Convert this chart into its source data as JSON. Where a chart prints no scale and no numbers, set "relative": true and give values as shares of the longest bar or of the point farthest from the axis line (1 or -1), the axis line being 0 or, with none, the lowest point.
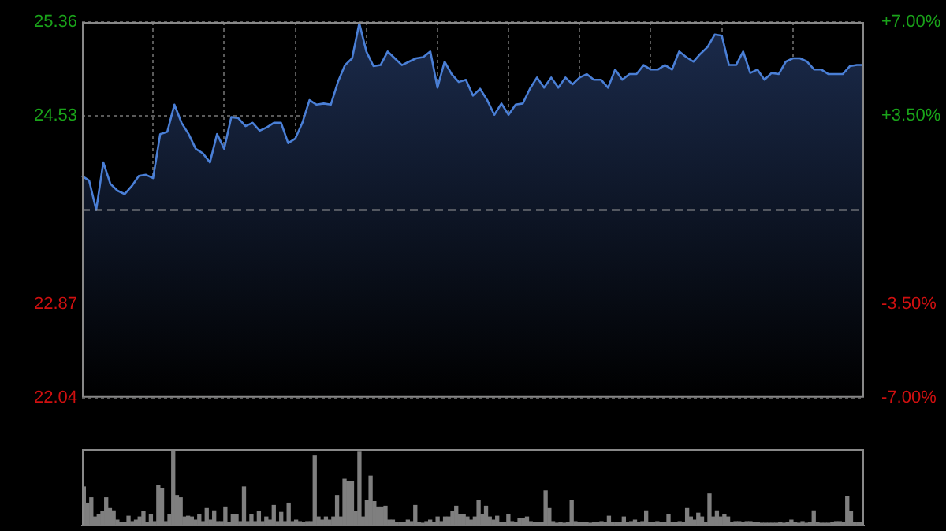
{
  "chart_data": [
    {
      "type": "area",
      "categories": [
        null,
        null,
        null,
        null,
        null,
        null,
        null,
        null,
        null,
        null,
        null,
        null,
        null,
        null,
        null,
        null,
        null,
        null,
        null,
        null,
        null,
        null,
        null,
        null,
        null,
        null,
        null,
        null,
        null,
        null,
        null,
        null,
        null,
        null,
        null,
        null,
        null,
        null,
        null,
        null,
        null,
        null,
        null,
        null,
        null,
        null,
        null,
        null,
        null,
        null,
        null,
        null,
        null,
        null,
        null,
        null,
        null,
        null,
        null,
        null,
        null,
        null,
        null,
        null,
        null,
        null,
        null,
        null,
        null,
        null,
        null,
        null,
        null,
        null,
        null,
        null,
        null,
        null,
        null,
        null,
        null,
        null,
        null,
        null,
        null,
        null,
        null,
        null,
        null,
        null,
        null,
        null,
        null,
        null,
        null,
        null,
        null,
        null,
        null,
        null,
        null,
        null,
        null,
        null,
        null,
        null,
        null,
        null,
        null,
        null,
        null
      ],
      "series": [
        {
          "color": "#4a7fd6",
          "values": [
            24.0,
            23.96,
            23.7,
            24.12,
            23.93,
            23.87,
            23.84,
            23.91,
            24.0,
            24.01,
            23.98,
            24.37,
            24.39,
            24.63,
            24.47,
            24.37,
            24.24,
            24.2,
            24.12,
            24.37,
            24.24,
            24.52,
            24.51,
            24.44,
            24.47,
            24.4,
            24.43,
            24.47,
            24.47,
            24.29,
            24.33,
            24.47,
            24.67,
            24.63,
            24.64,
            24.63,
            24.83,
            24.98,
            25.04,
            25.35,
            25.1,
            24.97,
            24.98,
            25.1,
            25.04,
            24.98,
            25.01,
            25.04,
            25.05,
            25.1,
            24.78,
            25.01,
            24.9,
            24.83,
            24.85,
            24.71,
            24.77,
            24.67,
            24.54,
            24.64,
            24.54,
            24.63,
            24.64,
            24.77,
            24.87,
            24.78,
            24.87,
            24.78,
            24.87,
            24.81,
            24.87,
            24.9,
            24.85,
            24.85,
            24.78,
            24.94,
            24.85,
            24.9,
            24.9,
            24.98,
            24.94,
            24.94,
            24.98,
            24.94,
            25.1,
            25.05,
            25.01,
            25.08,
            25.14,
            25.25,
            25.24,
            24.98,
            24.98,
            25.1,
            24.91,
            24.94,
            24.85,
            24.91,
            24.9,
            25.01,
            25.04,
            25.04,
            25.01,
            24.94,
            24.94,
            24.9,
            24.9,
            24.9,
            24.97,
            24.98,
            24.98
          ]
        }
      ],
      "ylim": [
        22.04,
        25.36
      ],
      "yticks": [
        22.04,
        22.87,
        24.53,
        25.36
      ],
      "y2lim": [
        -7,
        7
      ],
      "y2ticks": [
        {
          "value": -7,
          "label": "-7.00%"
        },
        {
          "value": -3.5,
          "label": "-3.50%"
        },
        {
          "value": 3.5,
          "label": "+3.50%"
        },
        {
          "value": 7,
          "label": "+7.00%"
        }
      ],
      "ref_lines": [
        {
          "axis": "y",
          "value": 23.7,
          "line_style": "dashed"
        }
      ],
      "grid": true,
      "tick_labels": "y",
      "legend": false
    },
    {
      "type": "bar",
      "relative": true,
      "color": "#7f7f7f",
      "categories": [
        null,
        null,
        null,
        null,
        null,
        null,
        null,
        null,
        null,
        null,
        null,
        null,
        null,
        null,
        null,
        null,
        null,
        null,
        null,
        null,
        null,
        null,
        null,
        null,
        null,
        null,
        null,
        null,
        null,
        null,
        null,
        null,
        null,
        null,
        null,
        null,
        null,
        null,
        null,
        null,
        null,
        null,
        null,
        null,
        null,
        null,
        null,
        null,
        null,
        null,
        null,
        null,
        null,
        null,
        null,
        null,
        null,
        null,
        null,
        null,
        null,
        null,
        null,
        null,
        null,
        null,
        null,
        null,
        null,
        null,
        null,
        null,
        null,
        null,
        null,
        null,
        null,
        null,
        null,
        null,
        null,
        null,
        null,
        null,
        null,
        null,
        null,
        null,
        null,
        null,
        null,
        null,
        null,
        null,
        null,
        null,
        null,
        null,
        null,
        null,
        null,
        null,
        null,
        null,
        null,
        null,
        null,
        null,
        null,
        null,
        null,
        null,
        null,
        null,
        null,
        null,
        null,
        null,
        null,
        null,
        null,
        null,
        null,
        null,
        null,
        null,
        null,
        null,
        null,
        null,
        null,
        null,
        null,
        null,
        null,
        null,
        null,
        null,
        null,
        null,
        null,
        null,
        null,
        null,
        null,
        null,
        null,
        null,
        null,
        null,
        null,
        null,
        null,
        null,
        null,
        null,
        null,
        null,
        null,
        null,
        null,
        null,
        null,
        null,
        null,
        null,
        null,
        null,
        null,
        null,
        null,
        null,
        null,
        null,
        null,
        null,
        null,
        null,
        null,
        null,
        null,
        null,
        null,
        null,
        null,
        null,
        null,
        null,
        null,
        null,
        null,
        null,
        null,
        null,
        null,
        null,
        null,
        null,
        null,
        null,
        null,
        null,
        null,
        null,
        null,
        null,
        null,
        null,
        null,
        null
      ],
      "values": [
        0.51,
        0.3,
        0.37,
        0.12,
        0.15,
        0.19,
        0.37,
        0.23,
        0.2,
        0.08,
        0.05,
        0.05,
        0.13,
        0.06,
        0.08,
        0.12,
        0.19,
        0.05,
        0.15,
        0.06,
        0.53,
        0.49,
        0.06,
        0.15,
        1,
        0.4,
        0.37,
        0.12,
        0.13,
        0.12,
        0.08,
        0.15,
        0.06,
        0.23,
        0.08,
        0.2,
        0.06,
        0.06,
        0.25,
        0.05,
        0.15,
        0.15,
        0.06,
        0.51,
        0.06,
        0.15,
        0.06,
        0.19,
        0.06,
        0.12,
        0.08,
        0.27,
        0.06,
        0.18,
        0.06,
        0.3,
        0.06,
        0.08,
        0.06,
        0.05,
        0.06,
        0.06,
        0.91,
        0.12,
        0.08,
        0.12,
        0.08,
        0.12,
        0.4,
        0.12,
        0.61,
        0.58,
        0.58,
        0.19,
        0.96,
        0.12,
        0.33,
        0.65,
        0.32,
        0.25,
        0.25,
        0.26,
        0.08,
        0.08,
        0.05,
        0.05,
        0.05,
        0.08,
        0.06,
        0.27,
        0.05,
        0.04,
        0.06,
        0.08,
        0.05,
        0.12,
        0.06,
        0.12,
        0.12,
        0.19,
        0.26,
        0.15,
        0.15,
        0.12,
        0.08,
        0.12,
        0.33,
        0.15,
        0.26,
        0.12,
        0.08,
        0.13,
        0.05,
        0.05,
        0.15,
        0.06,
        0.05,
        0.1,
        0.1,
        0.12,
        0.06,
        0.05,
        0.05,
        0.05,
        0.46,
        0.23,
        0.06,
        0.04,
        0.05,
        0.04,
        0.05,
        0.33,
        0.06,
        0.05,
        0.05,
        0.05,
        0.04,
        0.05,
        0.05,
        0.06,
        0.05,
        0.13,
        0.05,
        0.05,
        0.05,
        0.12,
        0.05,
        0.06,
        0.08,
        0.05,
        0.06,
        0.2,
        0.05,
        0.05,
        0.06,
        0.05,
        0.05,
        0.15,
        0.05,
        0.05,
        0.06,
        0.05,
        0.23,
        0.12,
        0.08,
        0.17,
        0.12,
        0.05,
        0.42,
        0.12,
        0.2,
        0.12,
        0.15,
        0.12,
        0.05,
        0.06,
        0.06,
        0.05,
        0.06,
        0.06,
        0.05,
        0.05,
        0.04,
        0.04,
        0.04,
        0.04,
        0.04,
        0.05,
        0.04,
        0.05,
        0.08,
        0.05,
        0.04,
        0.06,
        0.04,
        0.05,
        0.2,
        0.05,
        0.04,
        0.04,
        0.04,
        0.05,
        0.06,
        0.06,
        0.05,
        0.39,
        0.19,
        0.05,
        0.05,
        0.05
      ]
    }
  ]
}
